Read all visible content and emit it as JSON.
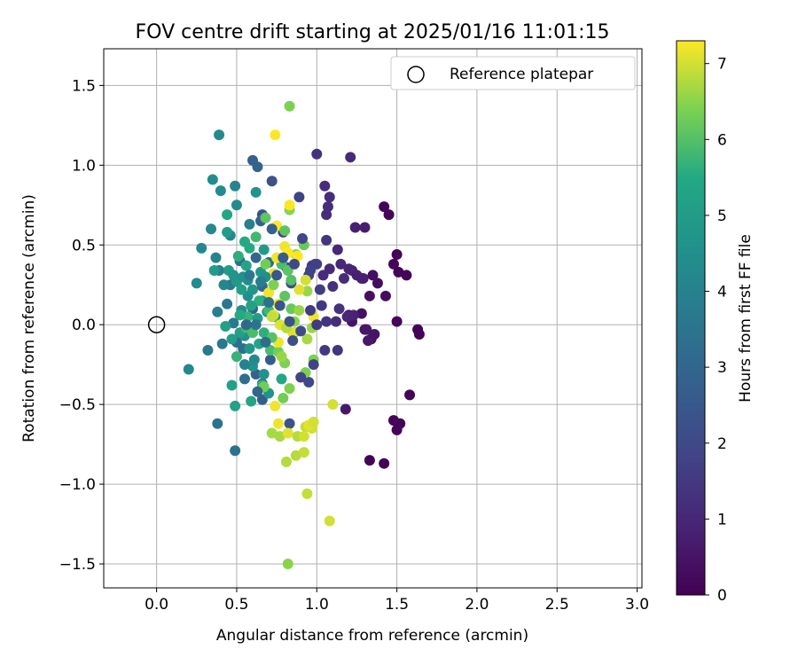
{
  "chart_data": {
    "type": "scatter",
    "title": "FOV centre drift starting at 2025/01/16 11:01:15",
    "xlabel": "Angular distance from reference (arcmin)",
    "ylabel": "Rotation from reference (arcmin)",
    "xlim": [
      -0.33,
      3.03
    ],
    "ylim": [
      -1.65,
      1.73
    ],
    "xticks": [
      0.0,
      0.5,
      1.0,
      1.5,
      2.0,
      2.5,
      3.0
    ],
    "xtick_labels": [
      "0.0",
      "0.5",
      "1.0",
      "1.5",
      "2.0",
      "2.5",
      "3.0"
    ],
    "yticks": [
      -1.5,
      -1.0,
      -0.5,
      0.0,
      0.5,
      1.0,
      1.5
    ],
    "ytick_labels": [
      "−1.5",
      "−1.0",
      "−0.5",
      "0.0",
      "0.5",
      "1.0",
      "1.5"
    ],
    "grid": true,
    "legend": {
      "placement": "top-right",
      "entries": [
        "Reference platepar"
      ]
    },
    "reference_point": {
      "x": 0.0,
      "y": 0.0
    },
    "colorbar": {
      "label": "Hours from first FF file",
      "colormap": "viridis",
      "range": [
        0,
        7.3
      ],
      "ticks": [
        0,
        1,
        2,
        3,
        4,
        5,
        6,
        7
      ],
      "tick_labels": [
        "0",
        "1",
        "2",
        "3",
        "4",
        "5",
        "6",
        "7"
      ]
    },
    "points": [
      [
        1.42,
        0.74,
        0.1
      ],
      [
        1.45,
        0.69,
        0.1
      ],
      [
        1.5,
        0.44,
        0.1
      ],
      [
        1.48,
        0.38,
        0.1
      ],
      [
        1.51,
        0.33,
        0.1
      ],
      [
        1.56,
        0.31,
        0.1
      ],
      [
        1.5,
        0.02,
        0.1
      ],
      [
        1.63,
        -0.03,
        0.1
      ],
      [
        1.64,
        -0.06,
        0.1
      ],
      [
        1.58,
        -0.44,
        0.1
      ],
      [
        1.48,
        -0.6,
        0.1
      ],
      [
        1.52,
        -0.62,
        0.1
      ],
      [
        1.5,
        -0.66,
        0.1
      ],
      [
        1.33,
        -0.85,
        0.1
      ],
      [
        1.42,
        -0.87,
        0.1
      ],
      [
        1.43,
        0.18,
        0.3
      ],
      [
        1.38,
        0.26,
        0.3
      ],
      [
        1.35,
        0.31,
        0.3
      ],
      [
        1.33,
        0.18,
        0.4
      ],
      [
        1.28,
        0.07,
        0.4
      ],
      [
        1.22,
        0.02,
        0.5
      ],
      [
        1.2,
        0.06,
        0.5
      ],
      [
        1.34,
        -0.09,
        0.4
      ],
      [
        1.3,
        -0.03,
        0.5
      ],
      [
        1.18,
        -0.53,
        0.6
      ],
      [
        1.3,
        0.61,
        0.7
      ],
      [
        1.24,
        0.61,
        0.8
      ],
      [
        1.25,
        0.31,
        0.8
      ],
      [
        1.22,
        0.34,
        0.8
      ],
      [
        1.29,
        0.29,
        0.7
      ],
      [
        1.21,
        1.05,
        1.1
      ],
      [
        1.13,
        0.47,
        1.0
      ],
      [
        1.15,
        0.38,
        1.0
      ],
      [
        1.08,
        0.35,
        1.1
      ],
      [
        1.04,
        0.31,
        1.1
      ],
      [
        1.05,
        0.87,
        1.2
      ],
      [
        1.08,
        0.8,
        1.2
      ],
      [
        1.07,
        0.74,
        1.2
      ],
      [
        1.06,
        0.69,
        1.2
      ],
      [
        1.0,
        1.07,
        1.3
      ],
      [
        1.1,
        0.24,
        1.3
      ],
      [
        1.14,
        0.1,
        1.3
      ],
      [
        1.06,
        0.02,
        1.4
      ],
      [
        1.13,
        -0.16,
        1.4
      ],
      [
        1.05,
        -0.16,
        1.5
      ],
      [
        0.99,
        0.38,
        1.5
      ],
      [
        0.97,
        0.37,
        1.6
      ],
      [
        0.95,
        0.31,
        1.7
      ],
      [
        0.89,
        0.8,
        1.8
      ],
      [
        0.79,
        0.58,
        1.8
      ],
      [
        0.81,
        0.36,
        2.0
      ],
      [
        0.72,
        0.9,
        2.3
      ],
      [
        0.66,
        0.69,
        2.3
      ],
      [
        0.84,
        0.26,
        2.2
      ],
      [
        0.95,
        -0.36,
        2.0
      ],
      [
        0.83,
        -0.62,
        2.3
      ],
      [
        0.71,
        -0.22,
        2.7
      ],
      [
        0.66,
        -0.47,
        2.7
      ],
      [
        0.66,
        -0.37,
        2.8
      ],
      [
        0.62,
        -0.31,
        2.8
      ],
      [
        0.6,
        1.03,
        2.8
      ],
      [
        0.63,
        0.99,
        2.9
      ],
      [
        0.65,
        0.65,
        2.9
      ],
      [
        0.62,
        0.42,
        3.0
      ],
      [
        0.6,
        0.1,
        3.0
      ],
      [
        0.66,
        0.24,
        3.1
      ],
      [
        0.7,
        0.39,
        3.1
      ],
      [
        0.52,
        0.4,
        3.3
      ],
      [
        0.5,
        -0.11,
        3.2
      ],
      [
        0.54,
        -0.15,
        3.3
      ],
      [
        0.55,
        -0.34,
        3.3
      ],
      [
        0.49,
        -0.79,
        3.4
      ],
      [
        0.38,
        -0.62,
        3.5
      ],
      [
        0.41,
        -0.12,
        3.6
      ],
      [
        0.32,
        -0.16,
        3.6
      ],
      [
        0.44,
        0.13,
        3.6
      ],
      [
        0.48,
        0.01,
        3.7
      ],
      [
        0.46,
        0.25,
        3.7
      ],
      [
        0.39,
        0.34,
        3.9
      ],
      [
        0.38,
        0.08,
        3.9
      ],
      [
        0.58,
        0.63,
        3.9
      ],
      [
        0.46,
        0.56,
        4.2
      ],
      [
        0.49,
        0.87,
        4.1
      ],
      [
        0.5,
        0.75,
        4.3
      ],
      [
        0.4,
        0.84,
        4.3
      ],
      [
        0.35,
        0.91,
        4.4
      ],
      [
        0.39,
        1.19,
        4.3
      ],
      [
        0.34,
        0.6,
        4.3
      ],
      [
        0.28,
        0.48,
        4.2
      ],
      [
        0.25,
        0.26,
        4.3
      ],
      [
        0.2,
        -0.28,
        4.2
      ],
      [
        0.53,
        0.09,
        4.4
      ],
      [
        0.57,
        0.18,
        4.5
      ],
      [
        0.55,
        -0.07,
        4.5
      ],
      [
        0.6,
        -0.26,
        4.6
      ],
      [
        0.67,
        -0.31,
        4.6
      ],
      [
        0.7,
        -0.43,
        4.7
      ],
      [
        0.62,
        0.83,
        4.7
      ],
      [
        0.6,
        0.22,
        4.8
      ],
      [
        0.65,
        0.33,
        4.8
      ],
      [
        0.66,
        0.15,
        4.8
      ],
      [
        0.69,
        0.08,
        4.8
      ],
      [
        0.74,
        0.05,
        4.9
      ],
      [
        0.5,
        0.27,
        4.9
      ],
      [
        0.45,
        0.34,
        4.9
      ],
      [
        0.44,
        0.58,
        5.0
      ],
      [
        0.36,
        0.34,
        5.0
      ],
      [
        0.43,
        -0.01,
        5.1
      ],
      [
        0.47,
        -0.09,
        5.1
      ],
      [
        0.52,
        -0.05,
        5.1
      ],
      [
        0.47,
        -0.38,
        5.2
      ],
      [
        0.49,
        -0.51,
        5.2
      ],
      [
        0.59,
        -0.48,
        5.3
      ],
      [
        0.78,
        -0.34,
        5.4
      ],
      [
        0.44,
        0.69,
        5.4
      ],
      [
        0.55,
        0.52,
        5.5
      ],
      [
        0.58,
        0.48,
        5.5
      ],
      [
        0.64,
        0.15,
        5.6
      ],
      [
        0.67,
        -0.05,
        5.6
      ],
      [
        0.66,
        -0.38,
        5.7
      ],
      [
        0.5,
        -0.2,
        5.7
      ],
      [
        0.56,
        -0.02,
        5.8
      ],
      [
        0.7,
        0.09,
        5.8
      ],
      [
        0.71,
        -0.16,
        5.9
      ],
      [
        0.78,
        0.38,
        5.9
      ],
      [
        0.84,
        0.28,
        6.0
      ],
      [
        0.68,
        0.67,
        6.1
      ],
      [
        0.82,
        0.34,
        6.1
      ],
      [
        0.8,
        0.18,
        6.1
      ],
      [
        0.84,
        0.1,
        6.2
      ],
      [
        0.86,
        -0.05,
        6.2
      ],
      [
        0.76,
        -0.17,
        6.3
      ],
      [
        0.67,
        -0.39,
        6.3
      ],
      [
        0.79,
        -0.46,
        6.3
      ],
      [
        0.83,
        -0.4,
        6.4
      ],
      [
        0.8,
        -0.24,
        6.4
      ],
      [
        0.93,
        -0.3,
        6.4
      ],
      [
        0.98,
        -0.22,
        6.4
      ],
      [
        0.83,
        1.37,
        6.4
      ],
      [
        0.83,
        0.72,
        6.5
      ],
      [
        0.87,
        0.44,
        6.5
      ],
      [
        0.89,
        0.09,
        6.6
      ],
      [
        0.94,
        0.21,
        6.6
      ],
      [
        0.97,
        -0.02,
        6.6
      ],
      [
        0.77,
        -0.7,
        6.7
      ],
      [
        0.72,
        -0.68,
        6.7
      ],
      [
        0.81,
        -0.86,
        6.8
      ],
      [
        0.87,
        -0.82,
        6.8
      ],
      [
        0.88,
        -0.7,
        6.8
      ],
      [
        0.92,
        -0.8,
        6.9
      ],
      [
        0.94,
        -1.06,
        6.9
      ],
      [
        0.93,
        -0.64,
        6.9
      ],
      [
        0.97,
        -0.65,
        7.0
      ],
      [
        0.82,
        -1.5,
        6.5
      ],
      [
        1.08,
        -1.23,
        7.0
      ],
      [
        1.1,
        -0.5,
        7.0
      ],
      [
        0.92,
        -0.7,
        7.0
      ],
      [
        0.82,
        -0.68,
        7.1
      ],
      [
        0.95,
        -0.63,
        7.1
      ],
      [
        0.98,
        -0.61,
        7.0
      ],
      [
        0.85,
        -0.05,
        7.1
      ],
      [
        0.77,
        0.0,
        7.1
      ],
      [
        0.73,
        0.06,
        7.1
      ],
      [
        0.76,
        0.13,
        7.2
      ],
      [
        0.7,
        0.2,
        7.2
      ],
      [
        0.73,
        0.32,
        7.2
      ],
      [
        0.75,
        0.42,
        7.2
      ],
      [
        0.8,
        0.49,
        7.2
      ],
      [
        0.82,
        0.45,
        7.3
      ],
      [
        0.88,
        0.43,
        7.3
      ],
      [
        0.75,
        0.62,
        7.3
      ],
      [
        0.83,
        0.75,
        7.3
      ],
      [
        0.74,
        1.19,
        7.3
      ],
      [
        0.98,
        0.05,
        7.2
      ],
      [
        0.76,
        -0.11,
        7.2
      ],
      [
        0.74,
        -0.51,
        7.2
      ],
      [
        0.76,
        -0.62,
        7.2
      ],
      [
        0.89,
        0.22,
        7.1
      ],
      [
        0.93,
        0.28,
        7.0
      ],
      [
        0.72,
        0.05,
        6.9
      ],
      [
        0.81,
        -0.02,
        6.8
      ],
      [
        0.94,
        -0.09,
        6.7
      ],
      [
        0.78,
        -0.2,
        6.6
      ],
      [
        0.86,
        0.02,
        6.5
      ],
      [
        0.73,
        0.25,
        6.4
      ],
      [
        0.68,
        0.38,
        6.3
      ],
      [
        0.92,
        0.5,
        6.2
      ],
      [
        0.8,
        0.59,
        6.1
      ],
      [
        0.72,
        -0.08,
        6.0
      ],
      [
        0.6,
        -0.05,
        5.9
      ],
      [
        0.62,
        0.55,
        5.8
      ],
      [
        0.57,
        0.05,
        5.7
      ],
      [
        0.51,
        0.43,
        5.6
      ],
      [
        0.52,
        0.06,
        5.5
      ],
      [
        0.64,
        -0.12,
        5.4
      ],
      [
        0.56,
        0.37,
        5.3
      ],
      [
        0.59,
        0.12,
        5.2
      ],
      [
        0.53,
        0.22,
        5.1
      ],
      [
        0.63,
        0.04,
        5.0
      ],
      [
        0.67,
        0.47,
        4.9
      ],
      [
        0.58,
        -0.15,
        4.8
      ],
      [
        0.48,
        0.31,
        4.7
      ],
      [
        0.54,
        0.3,
        4.6
      ],
      [
        0.68,
        0.3,
        4.5
      ],
      [
        0.57,
        0.28,
        4.4
      ],
      [
        0.61,
        -0.22,
        4.3
      ],
      [
        0.42,
        0.25,
        4.2
      ],
      [
        0.37,
        0.42,
        4.1
      ],
      [
        0.55,
        -0.25,
        4.0
      ],
      [
        0.65,
        0.27,
        3.8
      ],
      [
        0.58,
        0.31,
        3.7
      ],
      [
        0.62,
        0.0,
        3.5
      ],
      [
        0.7,
        0.14,
        3.4
      ],
      [
        0.68,
        -0.11,
        3.2
      ],
      [
        0.56,
        0.0,
        3.1
      ],
      [
        0.63,
        -0.42,
        3.0
      ],
      [
        0.72,
        0.6,
        2.8
      ],
      [
        0.79,
        0.42,
        2.6
      ],
      [
        0.75,
        0.31,
        2.5
      ],
      [
        0.77,
        0.12,
        2.4
      ],
      [
        0.83,
        0.02,
        2.3
      ],
      [
        0.85,
        -0.1,
        2.2
      ],
      [
        0.9,
        -0.04,
        2.1
      ],
      [
        0.86,
        0.38,
        2.0
      ],
      [
        0.91,
        0.54,
        1.9
      ],
      [
        0.96,
        0.34,
        1.8
      ],
      [
        1.0,
        0.38,
        1.7
      ],
      [
        1.02,
        0.22,
        1.6
      ],
      [
        1.03,
        0.12,
        1.5
      ],
      [
        1.0,
        0.0,
        1.5
      ],
      [
        1.06,
        0.53,
        1.4
      ],
      [
        1.17,
        0.29,
        1.2
      ],
      [
        1.19,
        0.05,
        1.0
      ],
      [
        1.23,
        0.06,
        0.9
      ],
      [
        1.28,
        0.29,
        0.8
      ],
      [
        1.31,
        -0.03,
        0.6
      ],
      [
        1.32,
        -0.1,
        0.6
      ],
      [
        1.36,
        -0.06,
        0.5
      ],
      [
        1.2,
        0.35,
        0.9
      ],
      [
        1.12,
        0.02,
        1.2
      ],
      [
        0.96,
        0.09,
        1.6
      ],
      [
        0.98,
        -0.25,
        1.8
      ],
      [
        0.9,
        -0.33,
        1.9
      ]
    ]
  }
}
